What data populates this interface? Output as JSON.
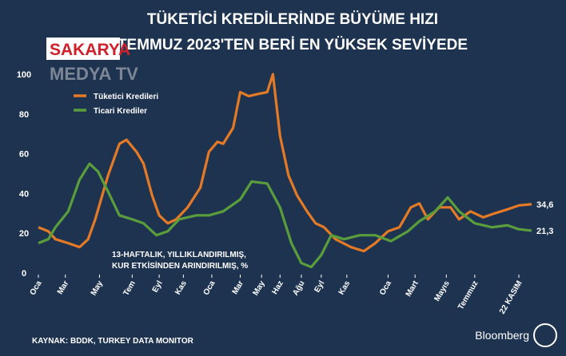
{
  "chart_data": {
    "type": "line",
    "title": "TÜKETİCİ KREDİLERİNDE BÜYÜME HIZI",
    "subtitle": "TEMMUZ 2023'TEN BERİ EN YÜKSEK SEVİYEDE",
    "watermark": [
      "SAKARYA",
      "MEDYA TV"
    ],
    "annotation": [
      "13-HAFTALIK, YILLIKLANDIRILMIŞ,",
      "KUR ETKİSİNDEN ARINDIRILMIŞ, %"
    ],
    "source": "KAYNAK: BDDK, TURKEY DATA MONITOR",
    "brand": "Bloomberg",
    "xlim": [
      0,
      34.7
    ],
    "xticks": [
      {
        "value": 0,
        "label": "Oca"
      },
      {
        "value": 1.9,
        "label": "Mar"
      },
      {
        "value": 4.3,
        "label": "May"
      },
      {
        "value": 6.6,
        "label": "Tem"
      },
      {
        "value": 8.5,
        "label": "Eyl"
      },
      {
        "value": 10.2,
        "label": "Kas"
      },
      {
        "value": 12.2,
        "label": "Oca"
      },
      {
        "value": 14.2,
        "label": "Mar"
      },
      {
        "value": 15.7,
        "label": "May"
      },
      {
        "value": 17.0,
        "label": "Haz"
      },
      {
        "value": 18.5,
        "label": "Ağu"
      },
      {
        "value": 19.9,
        "label": "Eyl"
      },
      {
        "value": 21.7,
        "label": "Kas"
      },
      {
        "value": 24.6,
        "label": "Oca"
      },
      {
        "value": 26.5,
        "label": "Mart"
      },
      {
        "value": 28.7,
        "label": "Mayıs"
      },
      {
        "value": 30.7,
        "label": "Temmuz"
      },
      {
        "value": 33.8,
        "label": "22 KASIM"
      }
    ],
    "ylim": [
      0,
      100
    ],
    "yticks": [
      0,
      20,
      40,
      60,
      80,
      100
    ],
    "grid": false,
    "legend": "upper left",
    "series": [
      {
        "name": "Tüketici Kredileri",
        "color": "#e47a26",
        "end_label": "34,6",
        "x": [
          0,
          0.7,
          1.2,
          2.1,
          2.9,
          3.5,
          4.0,
          4.9,
          5.7,
          6.2,
          6.9,
          7.4,
          8.0,
          8.5,
          9.1,
          9.7,
          10.5,
          11.4,
          12.0,
          12.6,
          13.0,
          13.7,
          14.2,
          14.8,
          15.4,
          16.1,
          16.5,
          17.0,
          17.6,
          18.2,
          18.9,
          19.5,
          20.1,
          20.9,
          22.0,
          22.9,
          23.7,
          24.6,
          25.4,
          26.2,
          26.8,
          27.4,
          28.2,
          29.0,
          29.6,
          30.4,
          31.3,
          32.1,
          33.0,
          33.8,
          34.7
        ],
        "values": [
          23,
          21,
          17,
          15,
          13,
          17,
          27,
          49,
          65,
          67,
          61,
          55,
          39,
          29,
          25,
          27,
          33,
          43,
          61,
          66,
          65,
          73,
          91,
          89,
          90,
          91,
          100,
          69,
          49,
          39,
          31,
          25,
          23,
          17,
          13,
          11,
          15,
          21,
          23,
          33,
          35,
          27,
          33,
          33,
          27,
          31,
          28,
          30,
          32,
          34,
          34.6
        ]
      },
      {
        "name": "Ticari Krediler",
        "color": "#5a9e3c",
        "end_label": "21,3",
        "x": [
          0,
          0.7,
          1.2,
          2.1,
          2.9,
          3.6,
          4.2,
          4.9,
          5.7,
          6.6,
          7.4,
          8.3,
          9.1,
          9.9,
          11.1,
          12.0,
          13.0,
          14.2,
          15.0,
          16.1,
          17.0,
          17.8,
          18.5,
          19.2,
          19.9,
          20.6,
          21.5,
          22.6,
          23.7,
          24.8,
          26.0,
          26.8,
          27.9,
          28.8,
          29.6,
          30.7,
          31.9,
          33.0,
          33.8,
          34.7
        ],
        "values": [
          15,
          17,
          23,
          31,
          47,
          55,
          51,
          41,
          29,
          27,
          25,
          19,
          21,
          27,
          29,
          29,
          31,
          37,
          46,
          45,
          33,
          15,
          5,
          3,
          9,
          19,
          17,
          19,
          19,
          16,
          21,
          26,
          31,
          38,
          31,
          25,
          23,
          24,
          22,
          21.3
        ]
      }
    ]
  }
}
